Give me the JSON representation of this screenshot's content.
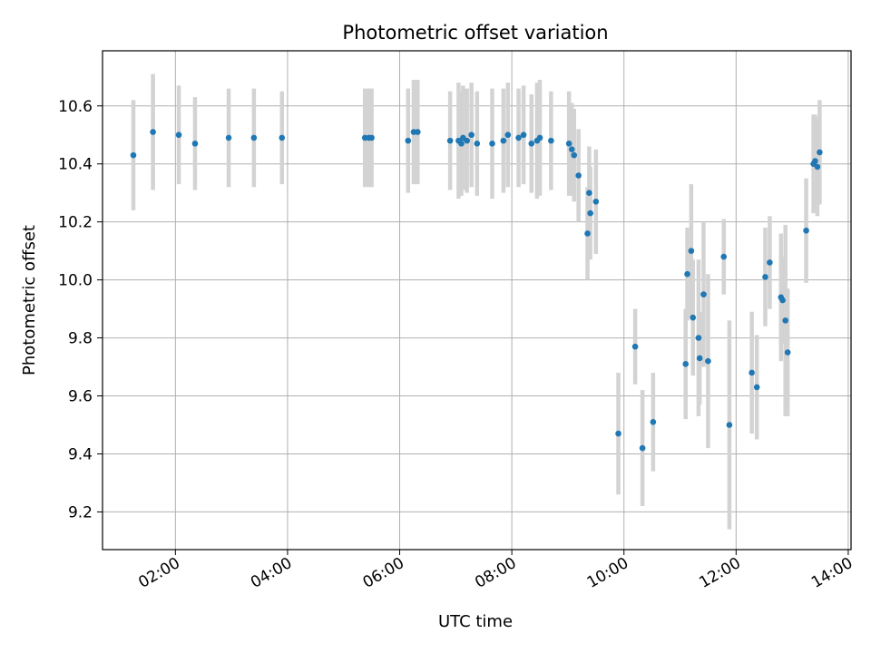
{
  "chart_data": {
    "type": "scatter",
    "title": "Photometric offset variation",
    "xlabel": "UTC time",
    "ylabel": "Photometric offset",
    "x_unit": "hours UTC",
    "xlim": [
      0.7,
      14.05
    ],
    "ylim": [
      9.07,
      10.79
    ],
    "x_ticks": [
      2,
      4,
      6,
      8,
      10,
      12,
      14
    ],
    "x_tick_labels": [
      "02:00",
      "04:00",
      "06:00",
      "08:00",
      "10:00",
      "12:00",
      "14:00"
    ],
    "y_ticks": [
      9.2,
      9.4,
      9.6,
      9.8,
      10.0,
      10.2,
      10.4,
      10.6
    ],
    "y_tick_labels": [
      "9.2",
      "9.4",
      "9.6",
      "9.8",
      "10.0",
      "10.2",
      "10.4",
      "10.6"
    ],
    "grid": true,
    "point_color": "#1f77b4",
    "errorbar_color": "#d3d3d3",
    "series": [
      {
        "x": [
          1.25,
          1.6,
          2.06,
          2.35,
          2.95,
          3.4,
          3.9,
          5.38,
          5.45,
          5.5,
          6.15,
          6.25,
          6.32,
          6.9,
          7.05,
          7.1,
          7.13,
          7.2,
          7.28,
          7.38,
          7.65,
          7.85,
          7.93,
          8.12,
          8.21,
          8.35,
          8.45,
          8.5,
          8.7,
          9.02,
          9.07,
          9.11,
          9.19,
          9.35,
          9.4,
          9.38,
          9.5,
          9.9,
          10.2,
          10.33,
          10.52,
          11.1,
          11.13,
          11.2,
          11.23,
          11.33,
          11.35,
          11.42,
          11.5,
          11.78,
          11.88,
          12.28,
          12.37,
          12.52,
          12.6,
          12.8,
          12.83,
          12.88,
          12.92,
          13.25,
          13.38,
          13.41,
          13.45,
          13.49
        ],
        "y": [
          10.43,
          10.51,
          10.5,
          10.47,
          10.49,
          10.49,
          10.49,
          10.49,
          10.49,
          10.49,
          10.48,
          10.51,
          10.51,
          10.48,
          10.48,
          10.47,
          10.49,
          10.48,
          10.5,
          10.47,
          10.47,
          10.48,
          10.5,
          10.49,
          10.5,
          10.47,
          10.48,
          10.49,
          10.48,
          10.47,
          10.45,
          10.43,
          10.36,
          10.16,
          10.23,
          10.3,
          10.27,
          9.47,
          9.77,
          9.42,
          9.51,
          9.71,
          10.02,
          10.1,
          9.87,
          9.8,
          9.73,
          9.95,
          9.72,
          10.08,
          9.5,
          9.68,
          9.63,
          10.01,
          10.06,
          9.94,
          9.93,
          9.86,
          9.75,
          10.17,
          10.4,
          10.41,
          10.39,
          10.44
        ],
        "yerr": [
          0.19,
          0.2,
          0.17,
          0.16,
          0.17,
          0.17,
          0.16,
          0.17,
          0.17,
          0.17,
          0.18,
          0.18,
          0.18,
          0.17,
          0.2,
          0.18,
          0.18,
          0.18,
          0.18,
          0.18,
          0.19,
          0.18,
          0.18,
          0.17,
          0.17,
          0.17,
          0.2,
          0.2,
          0.17,
          0.18,
          0.16,
          0.16,
          0.16,
          0.16,
          0.16,
          0.16,
          0.18,
          0.21,
          0.13,
          0.2,
          0.17,
          0.19,
          0.16,
          0.23,
          0.2,
          0.27,
          0.16,
          0.25,
          0.3,
          0.13,
          0.36,
          0.21,
          0.18,
          0.17,
          0.16,
          0.22,
          0.15,
          0.33,
          0.22,
          0.18,
          0.17,
          0.16,
          0.17,
          0.18
        ]
      }
    ]
  }
}
